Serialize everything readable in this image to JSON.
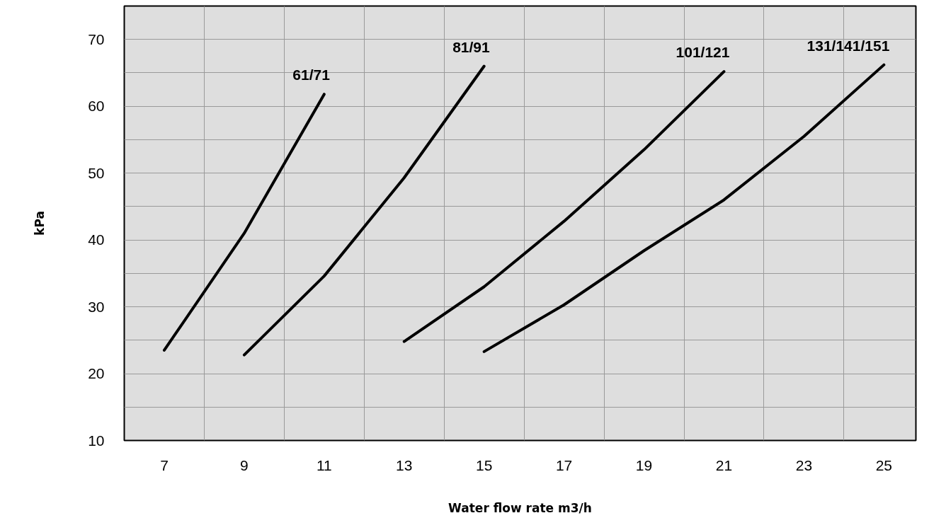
{
  "chart_data": {
    "type": "line",
    "xlabel": "Water flow rate m3/h",
    "ylabel": "kPa",
    "xlim": [
      6,
      25.8
    ],
    "ylim": [
      10,
      75
    ],
    "xticks": [
      7,
      {
        "value": 8,
        "label": null
      },
      9,
      {
        "value": 10,
        "label": null
      },
      11,
      {
        "value": 12,
        "label": null
      },
      13,
      {
        "value": 14,
        "label": null
      },
      15,
      {
        "value": 16,
        "label": null
      },
      17,
      {
        "value": 18,
        "label": null
      },
      19,
      {
        "value": 20,
        "label": null
      },
      21,
      {
        "value": 22,
        "label": null
      },
      23,
      {
        "value": 24,
        "label": null
      },
      25
    ],
    "yticks": [
      10,
      {
        "value": 15,
        "label": null
      },
      20,
      {
        "value": 25,
        "label": null
      },
      30,
      {
        "value": 35,
        "label": null
      },
      40,
      {
        "value": 45,
        "label": null
      },
      50,
      {
        "value": 55,
        "label": null
      },
      60,
      {
        "value": 65,
        "label": null
      },
      70
    ],
    "grid": true,
    "marker": "none",
    "line_style": "solid",
    "series": [
      {
        "name": "61/71",
        "color": "#000000",
        "x": [
          7,
          9,
          11
        ],
        "values": [
          23.5,
          41,
          61.8
        ]
      },
      {
        "name": "81/91",
        "color": "#000000",
        "x": [
          9,
          11,
          13,
          15
        ],
        "values": [
          22.8,
          34.6,
          49.3,
          66
        ]
      },
      {
        "name": "101/121",
        "color": "#000000",
        "x": [
          13,
          15,
          17,
          19,
          21
        ],
        "values": [
          24.8,
          33,
          42.8,
          53.5,
          65.2
        ]
      },
      {
        "name": "131/141/151",
        "color": "#000000",
        "x": [
          15,
          17,
          19,
          21,
          23,
          25
        ],
        "values": [
          23.3,
          30.3,
          38.4,
          46,
          55.5,
          66.2
        ]
      }
    ]
  }
}
